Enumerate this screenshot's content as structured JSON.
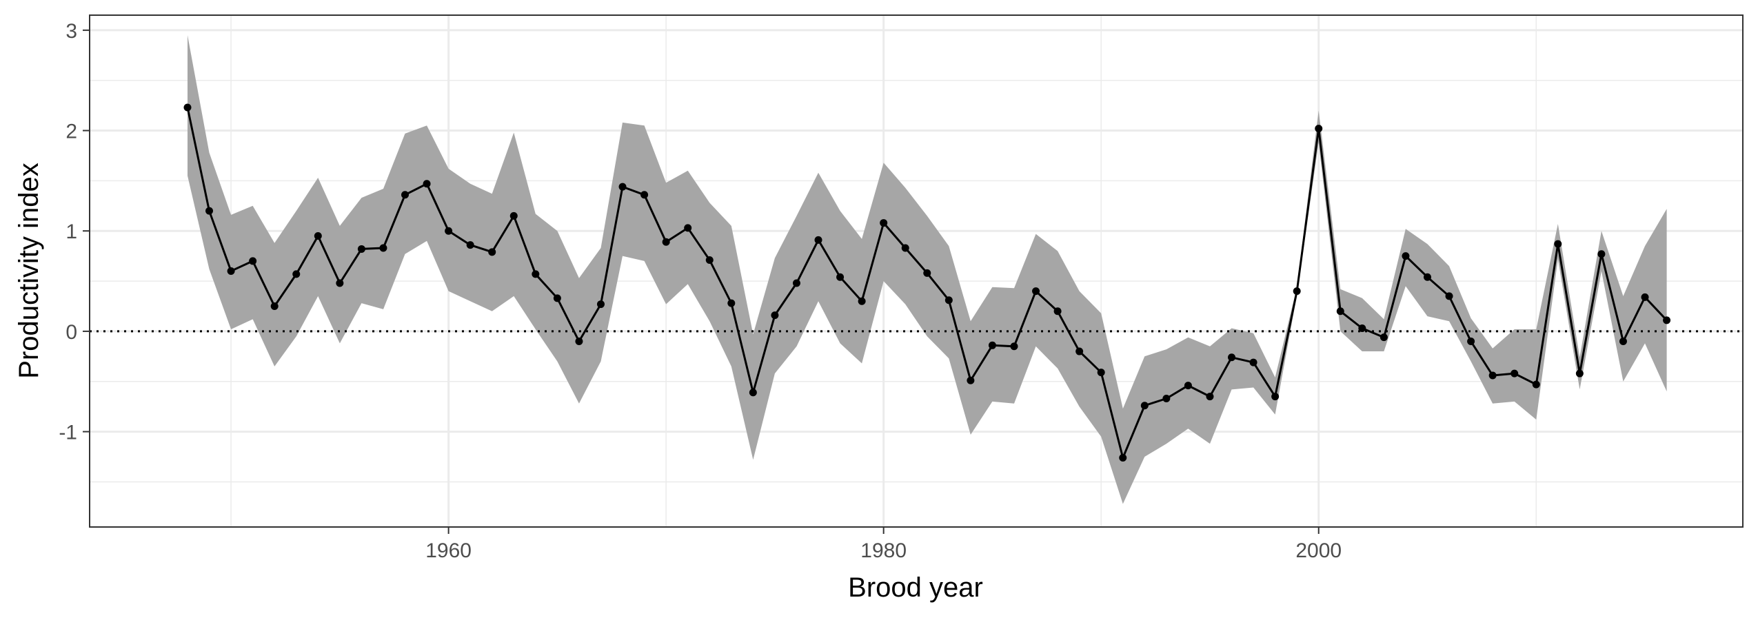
{
  "chart_data": {
    "type": "line",
    "title": "",
    "xlabel": "Brood year",
    "ylabel": "Productivity index",
    "xlim": [
      1943.5,
      2019.5
    ],
    "ylim": [
      -1.95,
      3.15
    ],
    "x_ticks": [
      1960,
      1980,
      2000
    ],
    "x_minor_ticks": [
      1950,
      1970,
      1990,
      2010
    ],
    "y_ticks": [
      -1,
      0,
      1,
      2,
      3
    ],
    "y_minor_ticks": [
      -1.5,
      -0.5,
      0.5,
      1.5,
      2.5
    ],
    "grid": true,
    "reference_line": {
      "y": 0,
      "style": "dotted"
    },
    "colors": {
      "line": "#000000",
      "ribbon": "#a6a6a6",
      "grid": "#ebebeb",
      "panel_border": "#333333"
    },
    "series": [
      {
        "x": [
          1948,
          1949,
          1950,
          1951,
          1952,
          1953,
          1954,
          1955,
          1956,
          1957,
          1958,
          1959,
          1960,
          1961,
          1962,
          1963,
          1964,
          1965,
          1966,
          1967,
          1968,
          1969,
          1970,
          1971,
          1972,
          1973,
          1974,
          1975,
          1976,
          1977,
          1978,
          1979,
          1980,
          1981,
          1982,
          1983,
          1984,
          1985,
          1986,
          1987,
          1988,
          1989,
          1990,
          1991,
          1992,
          1993,
          1994,
          1995,
          1996,
          1997,
          1998,
          1999,
          2000,
          2001,
          2002,
          2003,
          2004,
          2005,
          2006,
          2007,
          2008,
          2009,
          2010,
          2011,
          2012,
          2013,
          2014,
          2015,
          2016
        ],
        "y": [
          2.23,
          1.2,
          0.6,
          0.7,
          0.25,
          0.57,
          0.95,
          0.48,
          0.82,
          0.83,
          1.36,
          1.47,
          1.0,
          0.86,
          0.79,
          1.15,
          0.57,
          0.33,
          -0.1,
          0.27,
          1.44,
          1.36,
          0.89,
          1.03,
          0.71,
          0.28,
          -0.61,
          0.16,
          0.48,
          0.91,
          0.54,
          0.3,
          1.08,
          0.83,
          0.58,
          0.31,
          -0.49,
          -0.14,
          -0.15,
          0.4,
          0.2,
          -0.2,
          -0.41,
          -1.26,
          -0.74,
          -0.67,
          -0.54,
          -0.65,
          -0.26,
          -0.31,
          -0.65,
          0.4,
          2.02,
          0.2,
          0.03,
          -0.06,
          0.75,
          0.54,
          0.35,
          -0.1,
          -0.44,
          -0.42,
          -0.53,
          0.87,
          -0.42,
          0.77,
          -0.1,
          0.34,
          0.11
        ],
        "lower": [
          1.55,
          0.62,
          0.02,
          0.12,
          -0.35,
          -0.05,
          0.35,
          -0.12,
          0.28,
          0.22,
          0.77,
          0.9,
          0.4,
          0.3,
          0.2,
          0.35,
          0.02,
          -0.3,
          -0.72,
          -0.3,
          0.75,
          0.7,
          0.27,
          0.47,
          0.1,
          -0.35,
          -1.28,
          -0.42,
          -0.15,
          0.3,
          -0.12,
          -0.32,
          0.5,
          0.27,
          -0.05,
          -0.27,
          -1.03,
          -0.7,
          -0.72,
          -0.15,
          -0.37,
          -0.75,
          -1.05,
          -1.72,
          -1.25,
          -1.12,
          -0.97,
          -1.12,
          -0.58,
          -0.56,
          -0.83,
          0.36,
          1.88,
          0.0,
          -0.2,
          -0.2,
          0.45,
          0.15,
          0.1,
          -0.3,
          -0.72,
          -0.7,
          -0.88,
          0.72,
          -0.58,
          0.6,
          -0.5,
          -0.12,
          -0.6
        ],
        "upper": [
          2.95,
          1.78,
          1.16,
          1.25,
          0.88,
          1.2,
          1.53,
          1.05,
          1.33,
          1.42,
          1.97,
          2.05,
          1.62,
          1.47,
          1.37,
          1.98,
          1.17,
          1.0,
          0.53,
          0.83,
          2.08,
          2.05,
          1.48,
          1.6,
          1.28,
          1.05,
          -0.03,
          0.73,
          1.15,
          1.58,
          1.2,
          0.92,
          1.68,
          1.43,
          1.15,
          0.85,
          0.1,
          0.44,
          0.43,
          0.97,
          0.8,
          0.4,
          0.18,
          -0.77,
          -0.25,
          -0.18,
          -0.06,
          -0.15,
          0.03,
          -0.02,
          -0.46,
          0.44,
          2.2,
          0.42,
          0.33,
          0.12,
          1.02,
          0.87,
          0.65,
          0.13,
          -0.17,
          0.02,
          0.02,
          1.07,
          -0.26,
          1.0,
          0.35,
          0.85,
          1.22
        ]
      }
    ]
  }
}
